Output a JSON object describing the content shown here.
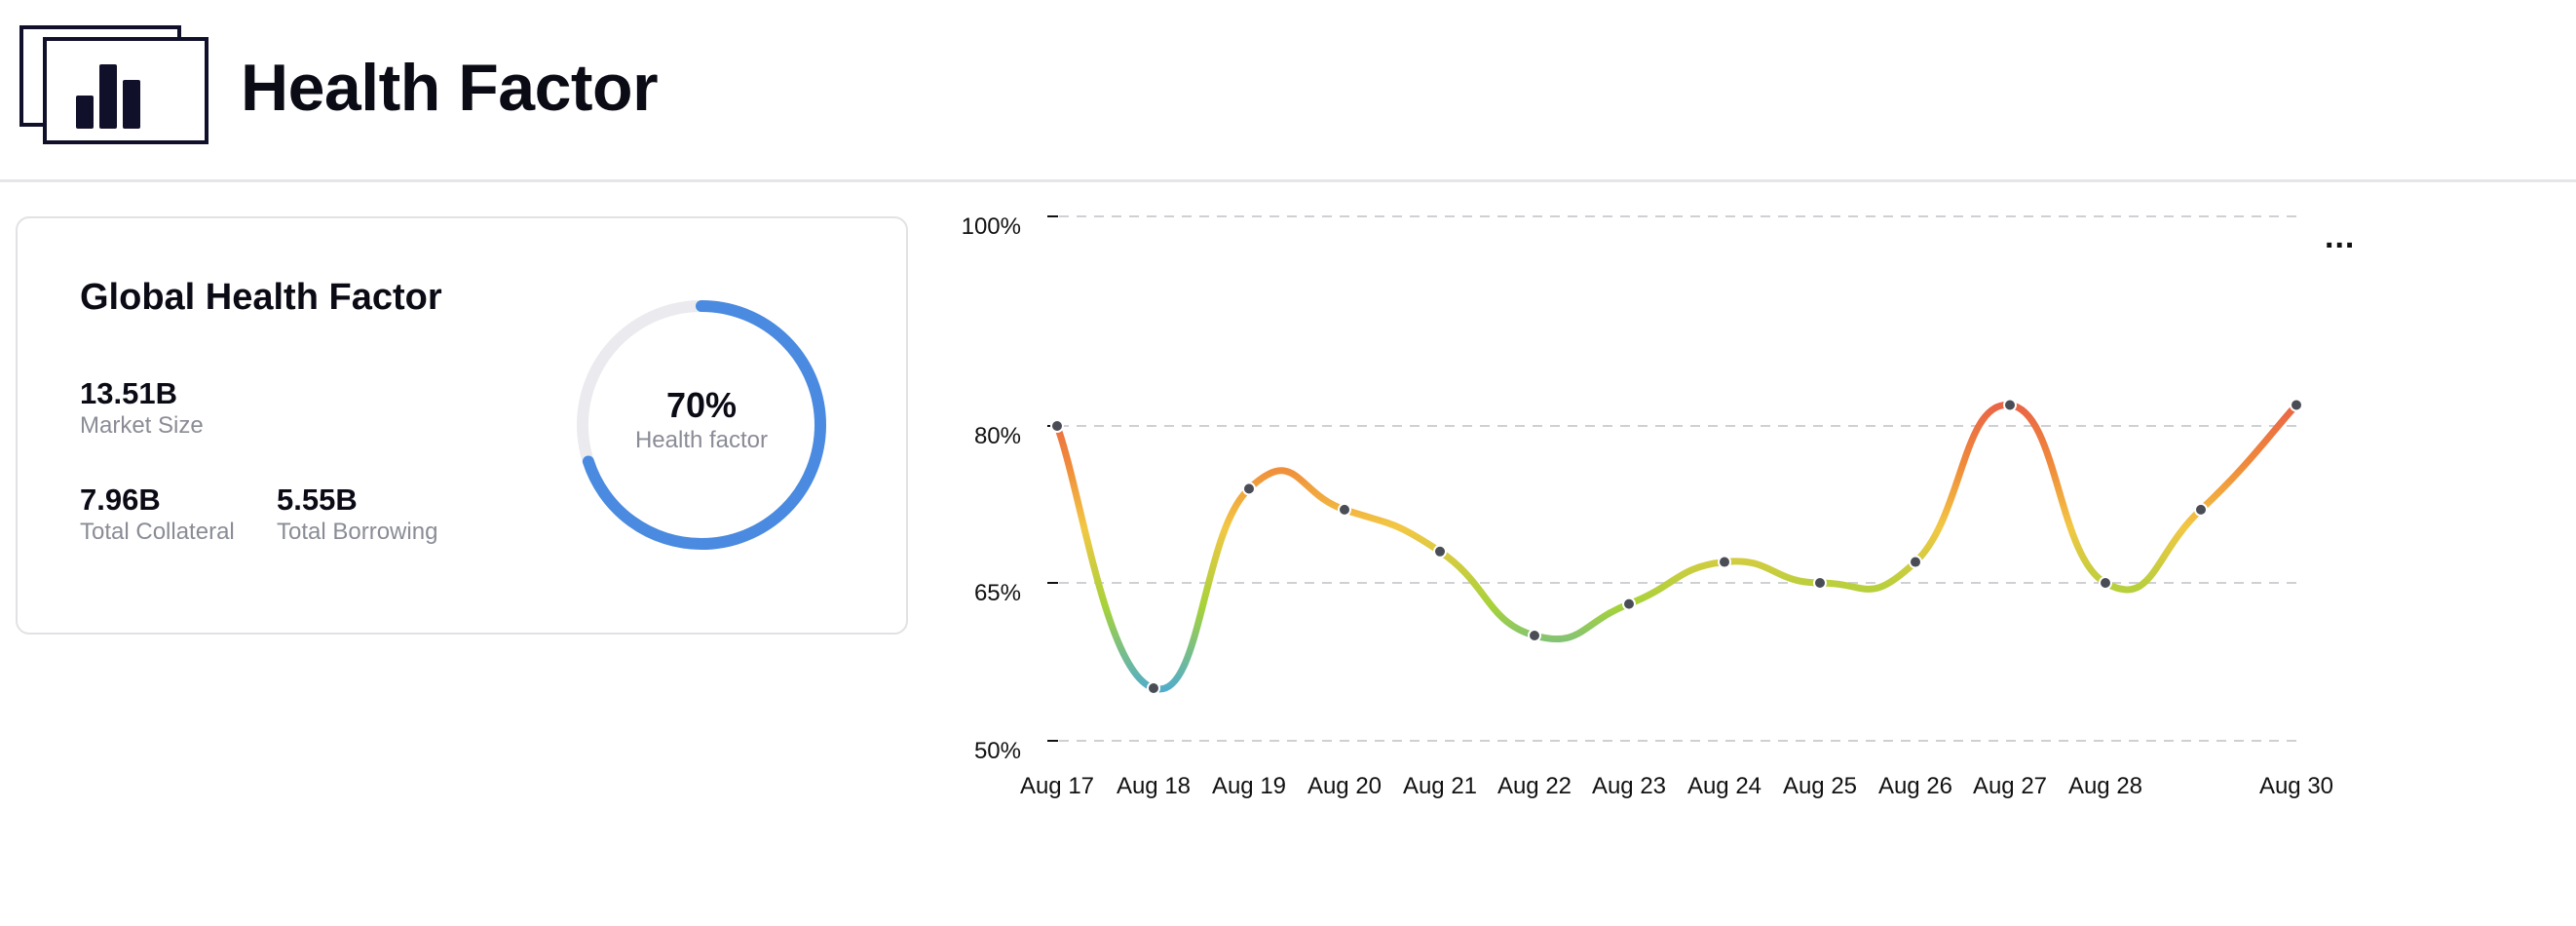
{
  "header": {
    "title": "Health Factor",
    "logo_icon": "bar-chart-icon"
  },
  "summary": {
    "title": "Global Health Factor",
    "market_size": {
      "value": "13.51B",
      "label": "Market Size"
    },
    "total_collateral": {
      "value": "7.96B",
      "label": "Total Collateral"
    },
    "total_borrowing": {
      "value": "5.55B",
      "label": "Total Borrowing"
    },
    "gauge": {
      "value": "70%",
      "fraction": 0.7,
      "label": "Health factor",
      "color": "#4a8ae0",
      "track_color": "#ebebef"
    }
  },
  "more_button": {
    "label": "...",
    "icon": "more-icon"
  },
  "chart_data": {
    "type": "line",
    "y_tick_labels": [
      "100%",
      "80%",
      "65%",
      "50%"
    ],
    "x_tick_labels": [
      "Aug 17",
      "Aug 18",
      "Aug 19",
      "Aug 20",
      "Aug 21",
      "Aug 22",
      "Aug 23",
      "Aug 24",
      "Aug 25",
      "Aug 26",
      "Aug 27",
      "Aug 28",
      "Aug 30"
    ],
    "grid": "horizontal-dashed",
    "series": [
      {
        "values": [
          80,
          55,
          74,
          72,
          68,
          60,
          63,
          67,
          65,
          67,
          82,
          65,
          72,
          82
        ]
      }
    ],
    "color_scale": [
      "#46a8e0",
      "#a6d23a",
      "#f2c744",
      "#f08a3a",
      "#e8584a"
    ]
  }
}
